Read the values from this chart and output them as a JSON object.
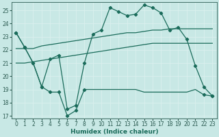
{
  "xlabel": "Humidex (Indice chaleur)",
  "background_color": "#c8e8e5",
  "grid_color": "#e8f8f8",
  "line_color": "#1a6b5a",
  "xlim": [
    -0.5,
    23.5
  ],
  "ylim": [
    16.8,
    25.6
  ],
  "yticks": [
    17,
    18,
    19,
    20,
    21,
    22,
    23,
    24,
    25
  ],
  "xticks": [
    0,
    1,
    2,
    3,
    4,
    5,
    6,
    7,
    8,
    9,
    10,
    11,
    12,
    13,
    14,
    15,
    16,
    17,
    18,
    19,
    20,
    21,
    22,
    23
  ],
  "line_jagged_x": [
    0,
    1,
    2,
    3,
    4,
    5,
    6,
    7,
    8,
    9,
    10,
    11,
    12,
    13,
    14,
    15,
    16,
    17,
    18,
    19,
    20,
    21,
    22,
    23
  ],
  "line_jagged_y": [
    23.3,
    22.2,
    21.0,
    19.2,
    18.8,
    18.8,
    17.0,
    17.4,
    19.0,
    19.0,
    19.0,
    19.0,
    19.0,
    19.0,
    19.0,
    18.8,
    18.8,
    18.8,
    18.8,
    18.8,
    18.8,
    19.0,
    18.6,
    18.5
  ],
  "line_jagged_markers": [
    0,
    1,
    2,
    3,
    4,
    5,
    6,
    7,
    8
  ],
  "line_upper_x": [
    0,
    1,
    2,
    3,
    4,
    5,
    6,
    7,
    8,
    9,
    10,
    11,
    12,
    13,
    14,
    15,
    16,
    17,
    18,
    19,
    20,
    21,
    22,
    23
  ],
  "line_upper_y": [
    22.1,
    22.1,
    22.1,
    22.3,
    22.4,
    22.5,
    22.6,
    22.7,
    22.8,
    22.9,
    23.0,
    23.1,
    23.2,
    23.3,
    23.3,
    23.4,
    23.5,
    23.5,
    23.6,
    23.6,
    23.6,
    23.6,
    23.6,
    23.6
  ],
  "line_lower_x": [
    0,
    1,
    2,
    3,
    4,
    5,
    6,
    7,
    8,
    9,
    10,
    11,
    12,
    13,
    14,
    15,
    16,
    17,
    18,
    19,
    20,
    21,
    22,
    23
  ],
  "line_lower_y": [
    21.0,
    21.0,
    21.1,
    21.2,
    21.3,
    21.4,
    21.5,
    21.6,
    21.7,
    21.8,
    21.9,
    22.0,
    22.1,
    22.2,
    22.3,
    22.4,
    22.5,
    22.5,
    22.5,
    22.5,
    22.5,
    22.5,
    22.5,
    22.5
  ],
  "line_peak_x": [
    0,
    1,
    2,
    3,
    4,
    5,
    6,
    7,
    8,
    9,
    10,
    11,
    12,
    13,
    14,
    15,
    16,
    17,
    18,
    19,
    20,
    21,
    22,
    23
  ],
  "line_peak_y": [
    23.3,
    22.2,
    21.0,
    19.2,
    21.3,
    21.6,
    17.5,
    17.8,
    21.0,
    23.2,
    23.5,
    25.2,
    24.9,
    24.6,
    24.7,
    25.4,
    25.2,
    24.8,
    23.5,
    23.7,
    22.8,
    20.8,
    19.2,
    18.5
  ]
}
